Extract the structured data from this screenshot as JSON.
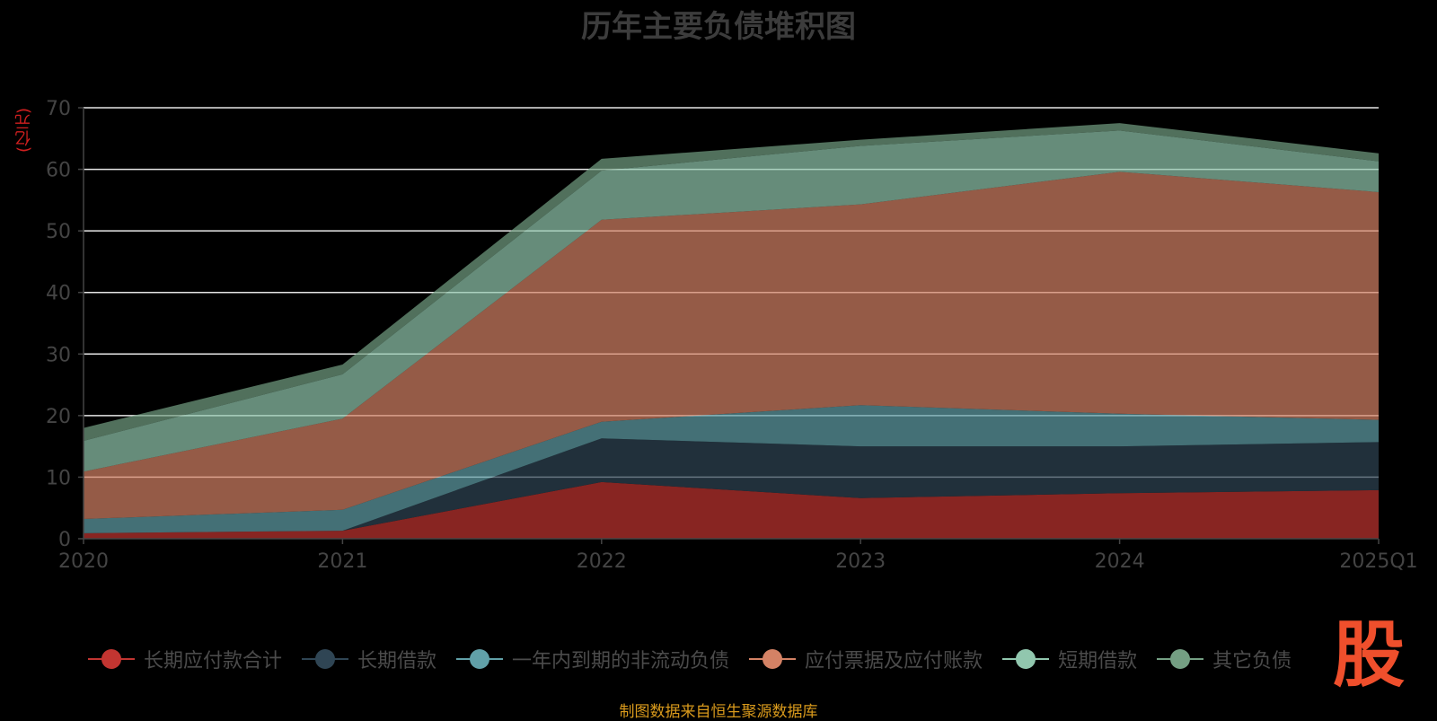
{
  "chart_data": {
    "type": "area",
    "stacked": true,
    "title": "历年主要负债堆积图",
    "unit": "(亿元)",
    "x": [
      "2020",
      "2021",
      "2022",
      "2023",
      "2024",
      "2025Q1"
    ],
    "ylim": [
      0,
      70
    ],
    "yticks": [
      0,
      10,
      20,
      30,
      40,
      50,
      60,
      70
    ],
    "grid": true,
    "legend_position": "bottom",
    "series": [
      {
        "name": "长期应付款合计",
        "color": "#c23531",
        "values": [
          0.9,
          1.3,
          9.2,
          6.6,
          7.4,
          7.9
        ]
      },
      {
        "name": "长期借款",
        "color": "#2f4554",
        "values": [
          0.0,
          0.0,
          7.1,
          8.4,
          7.6,
          7.8
        ]
      },
      {
        "name": "一年内到期的非流动负债",
        "color": "#61a0a8",
        "values": [
          2.3,
          3.4,
          2.7,
          6.7,
          5.3,
          3.6
        ]
      },
      {
        "name": "应付票据及应付账款",
        "color": "#d48265",
        "values": [
          7.7,
          14.8,
          32.8,
          32.6,
          39.3,
          37.0
        ]
      },
      {
        "name": "短期借款",
        "color": "#91c7ae",
        "values": [
          5.0,
          7.2,
          8.0,
          9.5,
          6.7,
          5.0
        ]
      },
      {
        "name": "其它负债",
        "color": "#749f83",
        "values": [
          2.1,
          1.6,
          1.9,
          1.0,
          1.2,
          1.3
        ]
      }
    ]
  },
  "watermark": "股",
  "source_note": "制图数据来自恒生聚源数据库"
}
